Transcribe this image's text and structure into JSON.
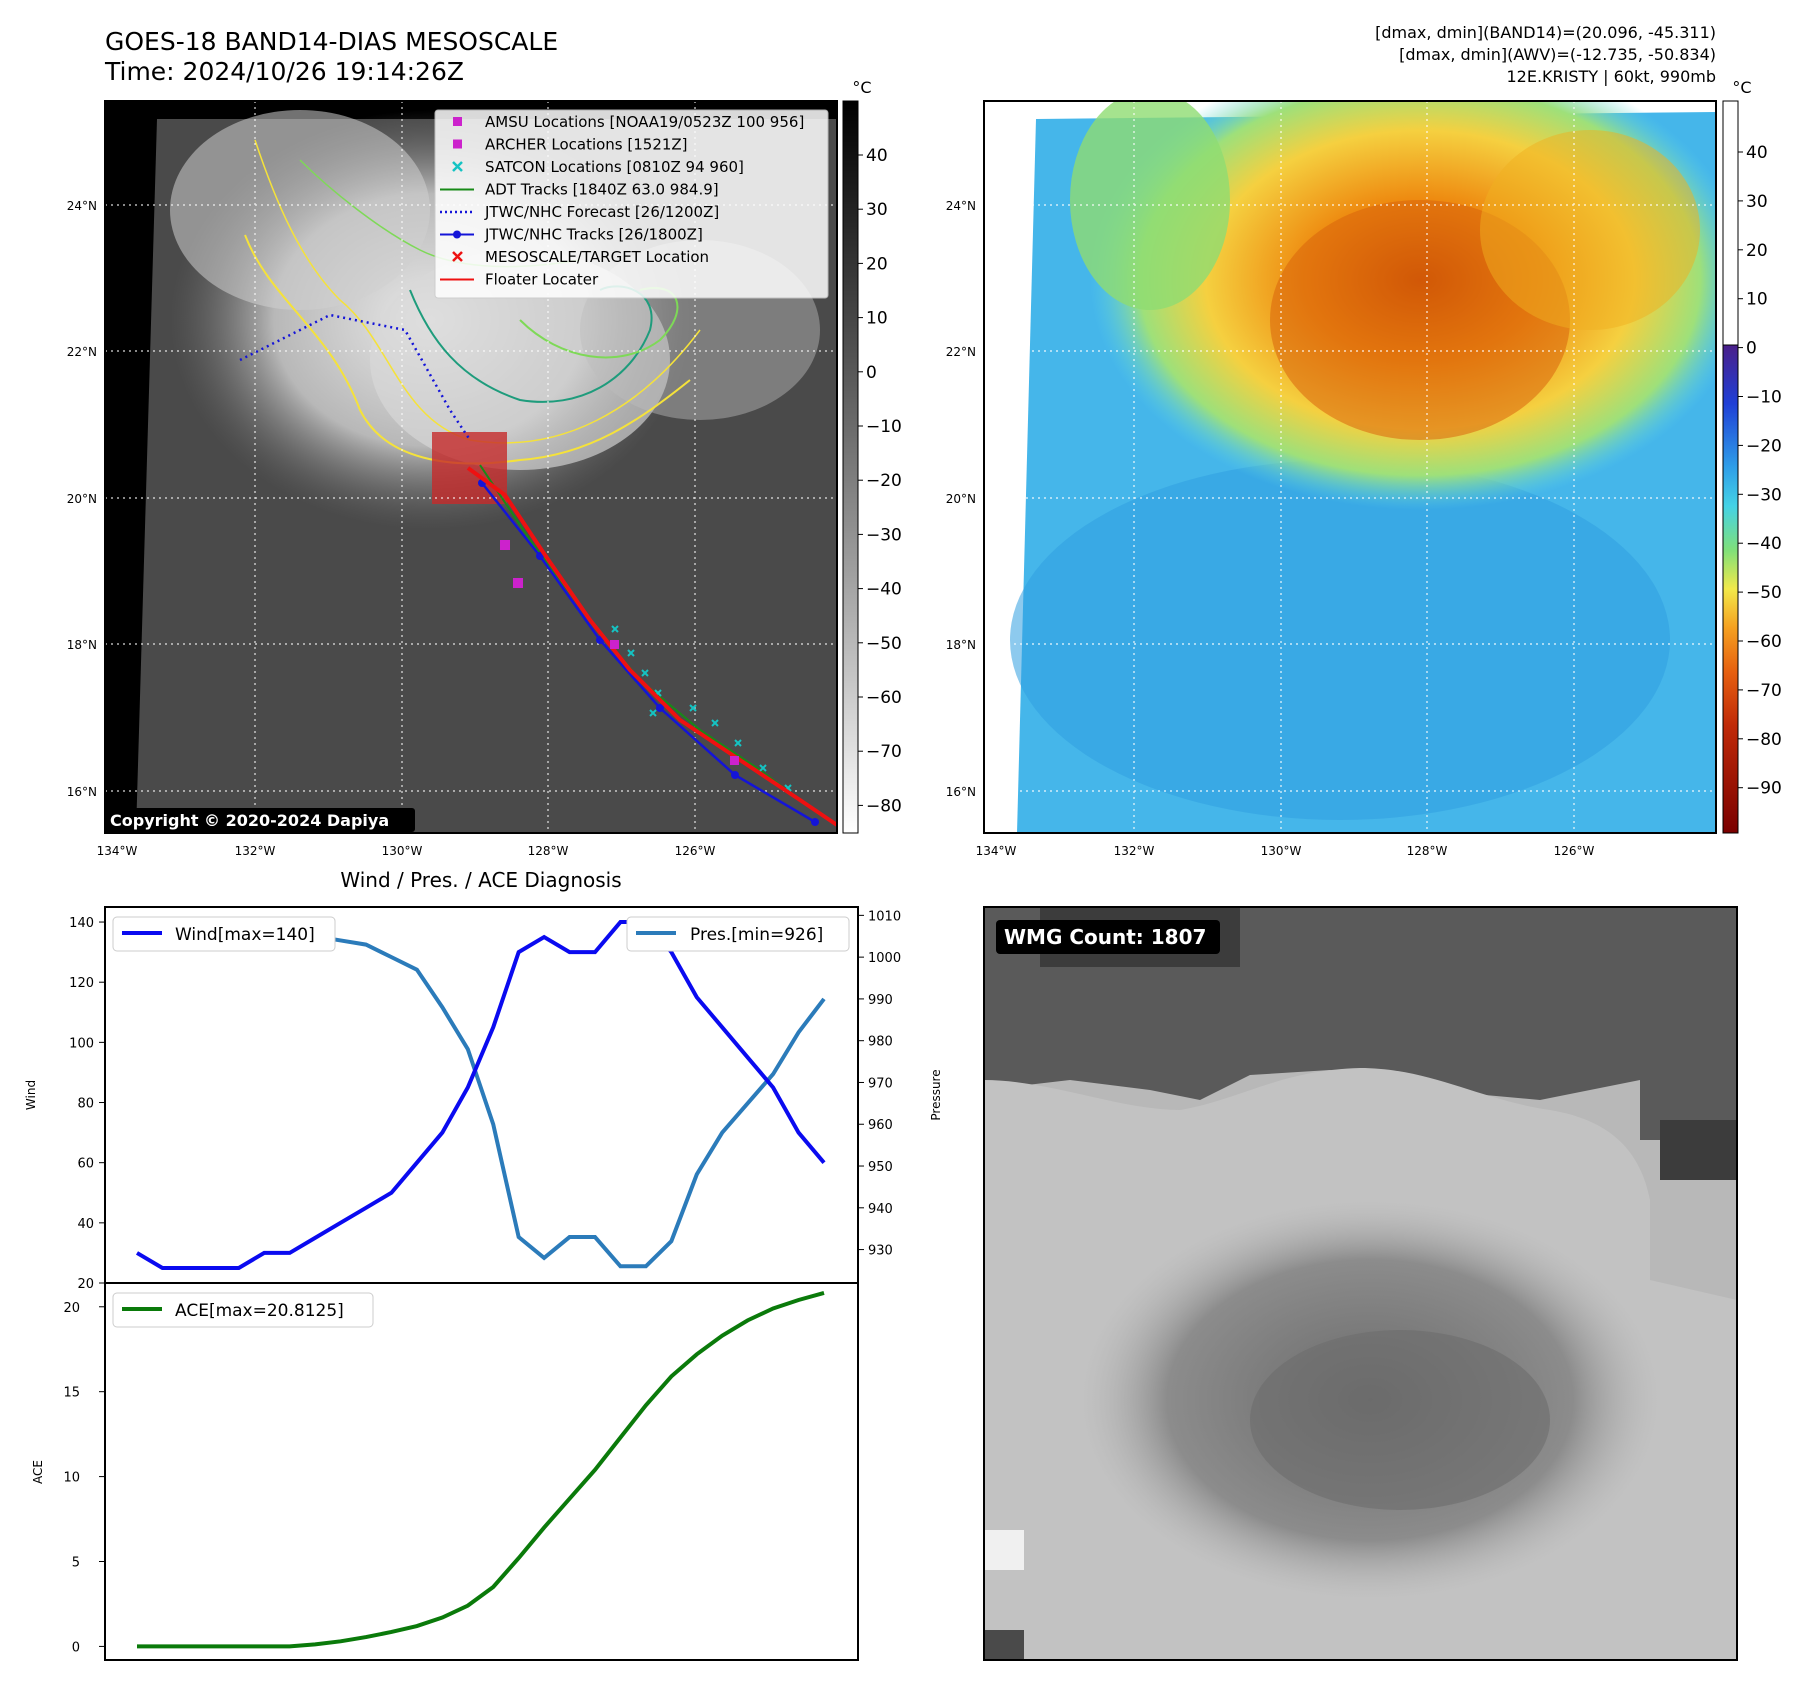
{
  "header": {
    "title": "GOES-18 BAND14-DIAS MESOSCALE",
    "time": "Time: 2024/10/26 19:14:26Z",
    "info_line1": "[dmax, dmin](BAND14)=(20.096, -45.311)",
    "info_line2": "[dmax, dmin](AWV)=(-12.735, -50.834)",
    "info_line3": "12E.KRISTY | 60kt, 990mb"
  },
  "colors": {
    "wind": "#0a0af0",
    "pressure": "#2b7bba",
    "ace": "#0a7a0a",
    "track_red": "#ee1111",
    "jtwc_blue": "#1414d8",
    "amsu_magenta": "#cc22cc",
    "satcon_cyan": "#15c3c3",
    "adt_green": "#178a17",
    "contour_yellow": "#f5e23a",
    "contour_teal": "#1e9c7c",
    "contour_green": "#7ed957"
  },
  "map": {
    "lat_labels": [
      "24°N",
      "22°N",
      "20°N",
      "18°N",
      "16°N"
    ],
    "lon_labels": [
      "134°W",
      "132°W",
      "130°W",
      "128°W",
      "126°W"
    ],
    "copyright": "Copyright © 2020-2024 Dapiya"
  },
  "colorbar_left": {
    "unit": "°C",
    "ticks": [
      "40",
      "30",
      "20",
      "10",
      "0",
      "−10",
      "−20",
      "−30",
      "−40",
      "−50",
      "−60",
      "−70",
      "−80"
    ]
  },
  "colorbar_right": {
    "unit": "°C",
    "ticks": [
      "40",
      "30",
      "20",
      "10",
      "0",
      "−10",
      "−20",
      "−30",
      "−40",
      "−50",
      "−60",
      "−70",
      "−80",
      "−90"
    ]
  },
  "legend": [
    {
      "label": "AMSU Locations [NOAA19/0523Z 100 956]",
      "marker": "square",
      "color": "#cc22cc"
    },
    {
      "label": "ARCHER Locations [1521Z]",
      "marker": "square",
      "color": "#cc22cc"
    },
    {
      "label": "SATCON Locations [0810Z 94 960]",
      "marker": "x",
      "color": "#15c3c3"
    },
    {
      "label": "ADT Tracks [1840Z 63.0 984.9]",
      "marker": "line",
      "color": "#178a17"
    },
    {
      "label": "JTWC/NHC Forecast [26/1200Z]",
      "marker": "dotted",
      "color": "#1414d8"
    },
    {
      "label": "JTWC/NHC Tracks [26/1800Z]",
      "marker": "line-dot",
      "color": "#1414d8"
    },
    {
      "label": "MESOSCALE/TARGET Location",
      "marker": "x",
      "color": "#ee1111"
    },
    {
      "label": "Floater Locater",
      "marker": "line",
      "color": "#ee1111"
    }
  ],
  "diagnosis": {
    "title": "Wind / Pres. / ACE Diagnosis",
    "wind_ylabel": "Wind",
    "pressure_ylabel": "Pressure",
    "ace_ylabel": "ACE",
    "wind_legend": "Wind[max=140]",
    "pressure_legend": "Pres.[min=926]",
    "ace_legend": "ACE[max=20.8125]"
  },
  "wmg": {
    "label": "WMG Count: 1807"
  },
  "chart_data": [
    {
      "type": "line",
      "title": "Wind / Pres. / ACE Diagnosis",
      "series": [
        {
          "name": "Wind[max=140]",
          "axis": "left",
          "values": [
            30,
            25,
            25,
            25,
            25,
            30,
            30,
            35,
            40,
            45,
            50,
            60,
            70,
            85,
            105,
            130,
            135,
            130,
            130,
            140,
            140,
            130,
            115,
            105,
            95,
            85,
            70,
            60
          ]
        },
        {
          "name": "Pres.[min=926]",
          "axis": "right",
          "values": [
            1006,
            1006,
            1006,
            1007,
            1007,
            1006,
            1006,
            1005,
            1004,
            1003,
            1000,
            997,
            988,
            978,
            960,
            933,
            928,
            933,
            933,
            926,
            926,
            932,
            948,
            958,
            965,
            972,
            982,
            990
          ]
        }
      ],
      "x": [
        0,
        1,
        2,
        3,
        4,
        5,
        6,
        7,
        8,
        9,
        10,
        11,
        12,
        13,
        14,
        15,
        16,
        17,
        18,
        19,
        20,
        21,
        22,
        23,
        24,
        25,
        26,
        27
      ],
      "ylabel": "Wind",
      "ylabel_right": "Pressure",
      "ylim": [
        20,
        145
      ],
      "ylim_right": [
        922,
        1012
      ],
      "yticks": [
        20,
        40,
        60,
        80,
        100,
        120,
        140
      ],
      "yticks_right": [
        930,
        940,
        950,
        960,
        970,
        980,
        990,
        1000,
        1010
      ]
    },
    {
      "type": "line",
      "series": [
        {
          "name": "ACE[max=20.8125]",
          "values": [
            0,
            0,
            0,
            0,
            0,
            0,
            0,
            0.12,
            0.3,
            0.55,
            0.85,
            1.2,
            1.7,
            2.4,
            3.5,
            5.2,
            7.0,
            8.7,
            10.4,
            12.3,
            14.2,
            15.9,
            17.2,
            18.3,
            19.2,
            19.9,
            20.4,
            20.8125
          ]
        }
      ],
      "x": [
        0,
        1,
        2,
        3,
        4,
        5,
        6,
        7,
        8,
        9,
        10,
        11,
        12,
        13,
        14,
        15,
        16,
        17,
        18,
        19,
        20,
        21,
        22,
        23,
        24,
        25,
        26,
        27
      ],
      "ylabel": "ACE",
      "ylim": [
        -0.8,
        21.4
      ],
      "yticks": [
        0,
        5,
        10,
        15,
        20
      ]
    }
  ]
}
